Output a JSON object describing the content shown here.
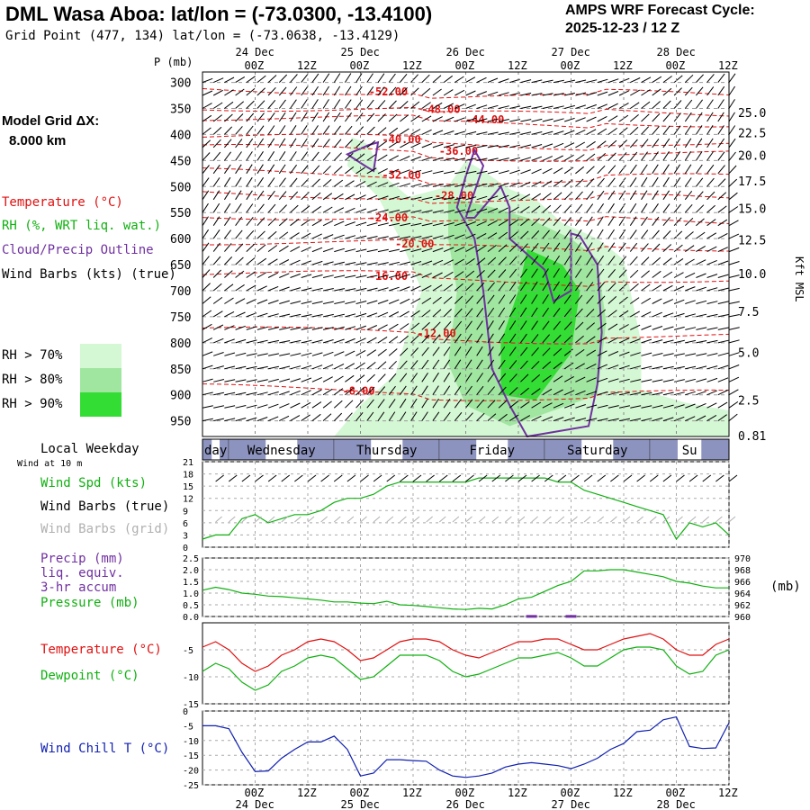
{
  "header": {
    "title": "DML Wasa Aboa:  lat/lon = (-73.0300, -13.4100)",
    "subtitle": "Grid Point (477, 134) lat/lon = (-73.0638, -13.4129)",
    "cycle_label": "AMPS WRF Forecast Cycle:",
    "cycle_value": "2025-12-23 / 12  Z"
  },
  "legend": {
    "model_grid_label": "Model Grid ΔX:",
    "model_grid_value": "8.000 km",
    "temperature": "Temperature (°C)",
    "rh": "RH (%, WRT liq. wat.)",
    "cloud": "Cloud/Precip Outline",
    "wind_barbs": "Wind Barbs (kts) (true)",
    "rh70": "RH > 70%",
    "rh80": "RH > 80%",
    "rh90": "RH > 90%",
    "local_weekday": "Local Weekday",
    "wind_at_10m": "Wind at 10 m",
    "wind_spd": "Wind Spd (kts)",
    "wind_barbs_true": "Wind Barbs (true)",
    "wind_barbs_grid": "Wind Barbs (grid)",
    "precip1": "Precip (mm)",
    "precip2": "liq. equiv.",
    "precip3": "3-hr accum",
    "pressure": "Pressure (mb)",
    "pressure_unit": "(mb)",
    "temp_panel": "Temperature (°C)",
    "dewpoint_panel": "Dewpoint (°C)",
    "windchill_panel": "Wind Chill T (°C)"
  },
  "colors": {
    "temperature": "#e01010",
    "rh_label": "#10b010",
    "cloud": "#7030a0",
    "rh70": "#d4f7d4",
    "rh80": "#a0e6a0",
    "rh90": "#33dd33",
    "grid_barb": "#b0b0b0",
    "windchill": "#1020b0",
    "weekday_bar": "#303a8a"
  },
  "chart_data": [
    {
      "type": "contour",
      "title": "Vertical time section",
      "ylabel": "P (mb)",
      "y2label": "Kft MSL",
      "pressure_ticks": [
        "300",
        "350",
        "400",
        "450",
        "500",
        "550",
        "600",
        "650",
        "700",
        "750",
        "800",
        "850",
        "900",
        "950"
      ],
      "height_ticks": [
        {
          "label": "25.0",
          "p": 358
        },
        {
          "label": "22.5",
          "p": 397
        },
        {
          "label": "20.0",
          "p": 440
        },
        {
          "label": "17.5",
          "p": 489
        },
        {
          "label": "15.0",
          "p": 542
        },
        {
          "label": "12.5",
          "p": 602
        },
        {
          "label": "10.0",
          "p": 667
        },
        {
          "label": "7.5",
          "p": 740
        },
        {
          "label": "5.0",
          "p": 818
        },
        {
          "label": "2.5",
          "p": 910
        },
        {
          "label": "0.81",
          "p": 978
        }
      ],
      "date_ticks": [
        {
          "t": 12,
          "label": "00Z",
          "date": "24 Dec"
        },
        {
          "t": 24,
          "label": "12Z",
          "date": ""
        },
        {
          "t": 36,
          "label": "00Z",
          "date": "25 Dec"
        },
        {
          "t": 48,
          "label": "12Z",
          "date": ""
        },
        {
          "t": 60,
          "label": "00Z",
          "date": "26 Dec"
        },
        {
          "t": 72,
          "label": "12Z",
          "date": ""
        },
        {
          "t": 84,
          "label": "00Z",
          "date": "27 Dec"
        },
        {
          "t": 96,
          "label": "12Z",
          "date": ""
        },
        {
          "t": 108,
          "label": "00Z",
          "date": "28 Dec"
        },
        {
          "t": 120,
          "label": "12Z",
          "date": ""
        }
      ],
      "temperature_labels": [
        {
          "text": "-52.00",
          "t": 42,
          "p": 318
        },
        {
          "text": "-48.00",
          "t": 54,
          "p": 352
        },
        {
          "text": "-44.00",
          "t": 64,
          "p": 372
        },
        {
          "text": "-40.00",
          "t": 45,
          "p": 410
        },
        {
          "text": "-36.00",
          "t": 58,
          "p": 432
        },
        {
          "text": "-32.00",
          "t": 45,
          "p": 478
        },
        {
          "text": "-28.00",
          "t": 57,
          "p": 518
        },
        {
          "text": "-24.00",
          "t": 42,
          "p": 560
        },
        {
          "text": "-20.00",
          "t": 48,
          "p": 610
        },
        {
          "text": "-16.00",
          "t": 42,
          "p": 672
        },
        {
          "text": "-12.00",
          "t": 53,
          "p": 782
        },
        {
          "text": "-8.00",
          "t": 36,
          "p": 893
        }
      ]
    },
    {
      "type": "line",
      "title": "Wind Spd (kts)",
      "ylim": [
        0,
        21
      ],
      "yticks": [
        "0",
        "3",
        "6",
        "9",
        "12",
        "15",
        "18",
        "21"
      ],
      "series": [
        {
          "name": "Wind Spd (kts)",
          "x": [
            0,
            3,
            6,
            9,
            12,
            15,
            18,
            21,
            24,
            27,
            30,
            33,
            36,
            39,
            42,
            45,
            48,
            51,
            54,
            57,
            60,
            63,
            66,
            69,
            72,
            75,
            78,
            81,
            84,
            87,
            90,
            93,
            96,
            99,
            102,
            105,
            108,
            111,
            114,
            117,
            120
          ],
          "values": [
            2,
            3,
            3,
            7,
            8,
            6,
            7,
            8,
            8,
            9,
            11,
            12,
            12,
            13,
            15,
            16,
            16,
            16,
            16,
            16,
            16,
            17,
            17,
            17,
            17,
            17,
            17,
            16,
            16,
            14,
            13,
            12,
            11,
            10,
            9,
            8,
            2,
            6,
            5,
            6,
            3
          ]
        }
      ]
    },
    {
      "type": "line",
      "title": "Pressure (mb)",
      "ylim": [
        960,
        970
      ],
      "yticks": [
        "960",
        "962",
        "964",
        "966",
        "968",
        "970"
      ],
      "y2ticks": [
        "0.0",
        "0.5",
        "1.0",
        "1.5",
        "2.0",
        "2.5"
      ],
      "series": [
        {
          "name": "Pressure (mb)",
          "x": [
            0,
            3,
            6,
            9,
            12,
            15,
            18,
            21,
            24,
            27,
            30,
            33,
            36,
            39,
            42,
            45,
            48,
            51,
            54,
            57,
            60,
            63,
            66,
            69,
            72,
            75,
            78,
            81,
            84,
            87,
            90,
            93,
            96,
            99,
            102,
            105,
            108,
            111,
            114,
            117,
            120
          ],
          "values": [
            964.5,
            965,
            964.6,
            964,
            963.8,
            963.5,
            963.4,
            963.2,
            963,
            962.8,
            962.5,
            962.5,
            962.3,
            962.2,
            962.6,
            962,
            961.9,
            961.7,
            961.5,
            961.3,
            961.2,
            961.4,
            961.3,
            962,
            963,
            963.3,
            964.3,
            965.3,
            966,
            967.8,
            967.8,
            968,
            968,
            967.6,
            967.2,
            966.8,
            966,
            965.7,
            965.2,
            964.9,
            964.9
          ]
        },
        {
          "name": "Precip (mm)",
          "x": [
            75,
            84
          ],
          "values": [
            0.05,
            0.05
          ]
        }
      ]
    },
    {
      "type": "line",
      "title": "Temperature / Dewpoint",
      "ylim": [
        -15,
        0
      ],
      "yticks": [
        "-15",
        "-10",
        "-5"
      ],
      "series": [
        {
          "name": "Temperature (°C)",
          "x": [
            0,
            3,
            6,
            9,
            12,
            15,
            18,
            21,
            24,
            27,
            30,
            33,
            36,
            39,
            42,
            45,
            48,
            51,
            54,
            57,
            60,
            63,
            66,
            69,
            72,
            75,
            78,
            81,
            84,
            87,
            90,
            93,
            96,
            99,
            102,
            105,
            108,
            111,
            114,
            117,
            120
          ],
          "values": [
            -4.5,
            -3.5,
            -5,
            -7.5,
            -9,
            -8,
            -6,
            -5,
            -3.5,
            -3,
            -3.5,
            -5,
            -7,
            -6.5,
            -5,
            -3.5,
            -3,
            -3,
            -3.5,
            -5,
            -6,
            -6.5,
            -5.5,
            -4.5,
            -3.5,
            -3.5,
            -3,
            -3,
            -4,
            -5,
            -5,
            -4,
            -3,
            -2.5,
            -2,
            -3,
            -5,
            -6,
            -6,
            -4,
            -3
          ]
        },
        {
          "name": "Dewpoint (°C)",
          "x": [
            0,
            3,
            6,
            9,
            12,
            15,
            18,
            21,
            24,
            27,
            30,
            33,
            36,
            39,
            42,
            45,
            48,
            51,
            54,
            57,
            60,
            63,
            66,
            69,
            72,
            75,
            78,
            81,
            84,
            87,
            90,
            93,
            96,
            99,
            102,
            105,
            108,
            111,
            114,
            117,
            120
          ],
          "values": [
            -9,
            -7.5,
            -8.5,
            -11,
            -12.5,
            -11.5,
            -9,
            -8,
            -6.5,
            -6,
            -6.5,
            -8.5,
            -10.5,
            -10,
            -8,
            -6,
            -6,
            -6,
            -7,
            -9,
            -10,
            -9.5,
            -8.5,
            -7.5,
            -6.5,
            -6.5,
            -6,
            -5.5,
            -6.5,
            -8,
            -8,
            -6.5,
            -5,
            -4.5,
            -4.5,
            -5,
            -8,
            -9.5,
            -9,
            -6,
            -5
          ]
        }
      ]
    },
    {
      "type": "line",
      "title": "Wind Chill T (°C)",
      "ylim": [
        -25,
        0
      ],
      "yticks": [
        "-25",
        "-20",
        "-15",
        "-10",
        "-5",
        "0"
      ],
      "series": [
        {
          "name": "Wind Chill T (°C)",
          "x": [
            0,
            3,
            6,
            9,
            12,
            15,
            18,
            21,
            24,
            27,
            30,
            33,
            36,
            39,
            42,
            45,
            48,
            51,
            54,
            57,
            60,
            63,
            66,
            69,
            72,
            75,
            78,
            81,
            84,
            87,
            90,
            93,
            96,
            99,
            102,
            105,
            108,
            111,
            114,
            117,
            120
          ],
          "values": [
            -5,
            -5,
            -6,
            -14,
            -20.5,
            -20.3,
            -16,
            -13,
            -10.5,
            -10.5,
            -8.5,
            -13,
            -22,
            -21,
            -16.5,
            -16.5,
            -16.8,
            -17,
            -20,
            -22,
            -22.5,
            -22,
            -21,
            -19,
            -18,
            -17.5,
            -18,
            -18.5,
            -19.5,
            -18,
            -16,
            -13,
            -11,
            -7,
            -6.5,
            -3,
            -2,
            -12,
            -12.7,
            -12.5,
            -4
          ]
        }
      ]
    }
  ],
  "weekday_bar": [
    {
      "label": "day",
      "t0": -1,
      "t1": 6
    },
    {
      "label": "Wednesday",
      "t0": 6,
      "t1": 30
    },
    {
      "label": "Thursday",
      "t0": 30,
      "t1": 54
    },
    {
      "label": "Friday",
      "t0": 54,
      "t1": 78
    },
    {
      "label": "Saturday",
      "t0": 78,
      "t1": 102
    },
    {
      "label": "Su",
      "t0": 102,
      "t1": 121
    }
  ]
}
